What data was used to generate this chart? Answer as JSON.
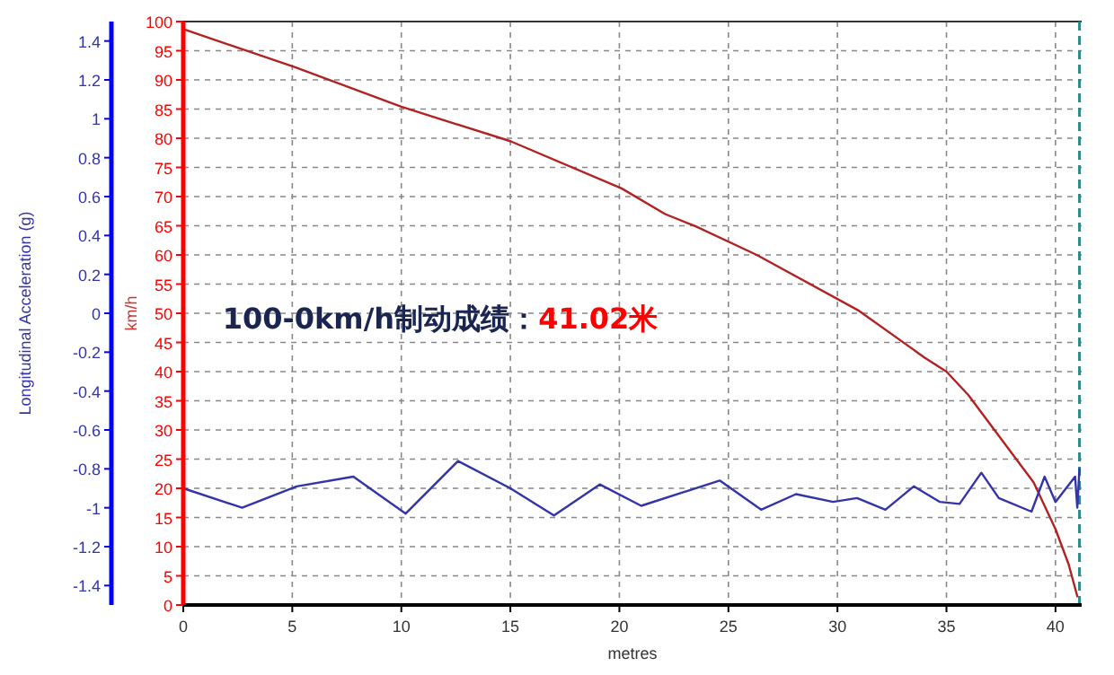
{
  "chart_data": {
    "type": "line",
    "xlabel": "metres",
    "ylabel": "km/h",
    "y2label": "Longitudinal Acceleration (g)",
    "annotations": [
      "100-0km/h制动成绩：",
      "41.02米"
    ],
    "xlim": [
      0,
      41.2
    ],
    "xticks": [
      0,
      5,
      10,
      15,
      20,
      25,
      30,
      35,
      40
    ],
    "ylim": [
      0,
      100
    ],
    "yticks": [
      0,
      5,
      10,
      15,
      20,
      25,
      30,
      35,
      40,
      45,
      50,
      55,
      60,
      65,
      70,
      75,
      80,
      85,
      90,
      95,
      100
    ],
    "y2lim": [
      -1.5,
      1.5
    ],
    "y2ticks": [
      -1.4,
      -1.2,
      -1,
      -0.8,
      -0.6,
      -0.4,
      -0.2,
      0,
      0.2,
      0.4,
      0.6,
      0.8,
      1,
      1.2,
      1.4
    ],
    "grid": true,
    "line_style": "solid",
    "ref_lines": [
      {
        "axis": "x",
        "value": 41.1,
        "color": "#2a8a8a",
        "line_style": "dashed"
      }
    ],
    "series": [
      {
        "color": "#b22222",
        "x": [
          0,
          5.1,
          10,
          15,
          20.1,
          22.1,
          23.5,
          26.3,
          31,
          34,
          35,
          36,
          37,
          38,
          39,
          40,
          40.6,
          41
        ],
        "values": [
          98.7,
          92.2,
          85.4,
          79.5,
          71.4,
          67,
          64.9,
          60,
          50.4,
          42.4,
          40,
          36,
          31,
          26,
          21,
          13,
          7,
          1.5
        ]
      },
      {
        "color": "#3333aa",
        "axis": "y2",
        "x": [
          0,
          2.7,
          5.2,
          7.8,
          10.2,
          12.6,
          15,
          17,
          19.1,
          21,
          24.6,
          26.5,
          28.1,
          29.8,
          30.9,
          32.2,
          33.5,
          34.7,
          35.6,
          36.6,
          37.4,
          38.9,
          39.5,
          40,
          40.9,
          41,
          41.1
        ],
        "values": [
          -0.9,
          -1.0,
          -0.89,
          -0.84,
          -1.03,
          -0.76,
          -0.9,
          -1.04,
          -0.88,
          -0.99,
          -0.86,
          -1.01,
          -0.93,
          -0.97,
          -0.95,
          -1.01,
          -0.89,
          -0.97,
          -0.98,
          -0.82,
          -0.95,
          -1.02,
          -0.84,
          -0.97,
          -0.84,
          -1.0,
          -0.8
        ]
      }
    ]
  }
}
